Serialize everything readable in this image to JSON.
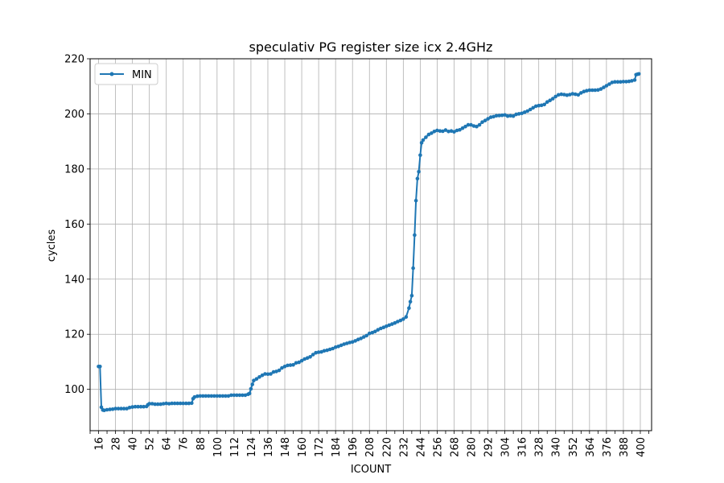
{
  "chart_data": {
    "type": "line",
    "title": "speculativ PG register size icx 2.4GHz",
    "xlabel": "ICOUNT",
    "ylabel": "cycles",
    "xlim": [
      10,
      408
    ],
    "ylim": [
      85,
      220
    ],
    "grid": true,
    "legend_position": "upper-left",
    "x_ticks": [
      16,
      28,
      40,
      52,
      64,
      76,
      88,
      100,
      112,
      124,
      136,
      148,
      160,
      172,
      184,
      196,
      208,
      220,
      232,
      244,
      256,
      268,
      280,
      292,
      304,
      316,
      328,
      340,
      352,
      364,
      376,
      388,
      400
    ],
    "y_ticks": [
      100,
      120,
      140,
      160,
      180,
      200,
      220
    ],
    "series": [
      {
        "name": "MIN",
        "color": "#1f77b4",
        "marker": "circle",
        "points": [
          [
            16,
            108.3
          ],
          [
            17,
            108.3
          ],
          [
            18,
            93.5
          ],
          [
            19,
            92.5
          ],
          [
            20,
            92.4
          ],
          [
            22,
            92.6
          ],
          [
            24,
            92.7
          ],
          [
            26,
            92.8
          ],
          [
            28,
            93.0
          ],
          [
            30,
            93.0
          ],
          [
            32,
            93.0
          ],
          [
            34,
            93.0
          ],
          [
            36,
            93.0
          ],
          [
            38,
            93.4
          ],
          [
            40,
            93.6
          ],
          [
            42,
            93.7
          ],
          [
            44,
            93.7
          ],
          [
            46,
            93.7
          ],
          [
            48,
            93.7
          ],
          [
            50,
            93.8
          ],
          [
            51,
            94.4
          ],
          [
            52,
            94.8
          ],
          [
            54,
            94.8
          ],
          [
            56,
            94.6
          ],
          [
            58,
            94.6
          ],
          [
            60,
            94.6
          ],
          [
            62,
            94.8
          ],
          [
            64,
            94.9
          ],
          [
            66,
            94.8
          ],
          [
            68,
            94.9
          ],
          [
            70,
            94.9
          ],
          [
            72,
            94.9
          ],
          [
            74,
            94.9
          ],
          [
            76,
            94.9
          ],
          [
            78,
            94.9
          ],
          [
            80,
            94.9
          ],
          [
            82,
            95.0
          ],
          [
            83,
            96.6
          ],
          [
            84,
            97.2
          ],
          [
            86,
            97.5
          ],
          [
            88,
            97.6
          ],
          [
            90,
            97.6
          ],
          [
            92,
            97.6
          ],
          [
            94,
            97.6
          ],
          [
            96,
            97.6
          ],
          [
            98,
            97.6
          ],
          [
            100,
            97.6
          ],
          [
            102,
            97.6
          ],
          [
            104,
            97.6
          ],
          [
            106,
            97.6
          ],
          [
            108,
            97.6
          ],
          [
            110,
            97.9
          ],
          [
            112,
            97.9
          ],
          [
            114,
            97.9
          ],
          [
            116,
            97.9
          ],
          [
            118,
            97.9
          ],
          [
            120,
            97.9
          ],
          [
            122,
            98.2
          ],
          [
            123,
            98.5
          ],
          [
            124,
            100.2
          ],
          [
            125,
            101.8
          ],
          [
            126,
            103.2
          ],
          [
            128,
            103.8
          ],
          [
            130,
            104.5
          ],
          [
            132,
            105.1
          ],
          [
            134,
            105.6
          ],
          [
            136,
            105.5
          ],
          [
            138,
            105.6
          ],
          [
            140,
            106.3
          ],
          [
            142,
            106.5
          ],
          [
            144,
            106.9
          ],
          [
            146,
            107.8
          ],
          [
            148,
            108.3
          ],
          [
            150,
            108.7
          ],
          [
            152,
            108.8
          ],
          [
            154,
            108.9
          ],
          [
            156,
            109.6
          ],
          [
            158,
            109.8
          ],
          [
            160,
            110.4
          ],
          [
            162,
            111.0
          ],
          [
            164,
            111.4
          ],
          [
            166,
            111.8
          ],
          [
            168,
            112.6
          ],
          [
            170,
            113.3
          ],
          [
            172,
            113.5
          ],
          [
            174,
            113.6
          ],
          [
            176,
            114.0
          ],
          [
            178,
            114.2
          ],
          [
            180,
            114.5
          ],
          [
            182,
            114.8
          ],
          [
            184,
            115.3
          ],
          [
            186,
            115.6
          ],
          [
            188,
            116.0
          ],
          [
            190,
            116.4
          ],
          [
            192,
            116.7
          ],
          [
            194,
            117.0
          ],
          [
            196,
            117.2
          ],
          [
            198,
            117.6
          ],
          [
            200,
            118.1
          ],
          [
            202,
            118.5
          ],
          [
            204,
            119.0
          ],
          [
            206,
            119.5
          ],
          [
            208,
            120.3
          ],
          [
            210,
            120.6
          ],
          [
            212,
            121.0
          ],
          [
            214,
            121.6
          ],
          [
            216,
            122.1
          ],
          [
            218,
            122.5
          ],
          [
            220,
            122.9
          ],
          [
            222,
            123.3
          ],
          [
            224,
            123.7
          ],
          [
            226,
            124.1
          ],
          [
            228,
            124.6
          ],
          [
            230,
            125.0
          ],
          [
            232,
            125.5
          ],
          [
            234,
            126.3
          ],
          [
            236,
            129.5
          ],
          [
            237,
            131.8
          ],
          [
            238,
            134.0
          ],
          [
            239,
            144.0
          ],
          [
            240,
            156.0
          ],
          [
            241,
            168.5
          ],
          [
            242,
            176.5
          ],
          [
            243,
            179.0
          ],
          [
            244,
            185.0
          ],
          [
            245,
            189.5
          ],
          [
            246,
            190.5
          ],
          [
            248,
            191.5
          ],
          [
            250,
            192.5
          ],
          [
            252,
            193.0
          ],
          [
            254,
            193.6
          ],
          [
            256,
            194.0
          ],
          [
            258,
            193.8
          ],
          [
            260,
            193.7
          ],
          [
            262,
            194.1
          ],
          [
            264,
            193.6
          ],
          [
            266,
            193.8
          ],
          [
            268,
            193.5
          ],
          [
            270,
            194.0
          ],
          [
            272,
            194.2
          ],
          [
            274,
            194.8
          ],
          [
            276,
            195.4
          ],
          [
            278,
            196.0
          ],
          [
            280,
            196.0
          ],
          [
            282,
            195.6
          ],
          [
            284,
            195.4
          ],
          [
            286,
            196.0
          ],
          [
            288,
            197.0
          ],
          [
            290,
            197.6
          ],
          [
            292,
            198.2
          ],
          [
            294,
            198.8
          ],
          [
            296,
            199.0
          ],
          [
            298,
            199.3
          ],
          [
            300,
            199.4
          ],
          [
            302,
            199.5
          ],
          [
            304,
            199.6
          ],
          [
            306,
            199.2
          ],
          [
            308,
            199.3
          ],
          [
            310,
            199.2
          ],
          [
            312,
            199.8
          ],
          [
            314,
            200.0
          ],
          [
            316,
            200.2
          ],
          [
            318,
            200.6
          ],
          [
            320,
            201.0
          ],
          [
            322,
            201.6
          ],
          [
            324,
            202.2
          ],
          [
            326,
            202.8
          ],
          [
            328,
            203.0
          ],
          [
            330,
            203.1
          ],
          [
            332,
            203.4
          ],
          [
            334,
            204.3
          ],
          [
            336,
            204.9
          ],
          [
            338,
            205.5
          ],
          [
            340,
            206.3
          ],
          [
            342,
            206.9
          ],
          [
            344,
            207.1
          ],
          [
            346,
            207.0
          ],
          [
            348,
            206.8
          ],
          [
            350,
            207.0
          ],
          [
            352,
            207.3
          ],
          [
            354,
            207.1
          ],
          [
            356,
            206.9
          ],
          [
            358,
            207.6
          ],
          [
            360,
            208.1
          ],
          [
            362,
            208.4
          ],
          [
            364,
            208.6
          ],
          [
            366,
            208.6
          ],
          [
            368,
            208.6
          ],
          [
            370,
            208.7
          ],
          [
            372,
            209.0
          ],
          [
            374,
            209.6
          ],
          [
            376,
            210.2
          ],
          [
            378,
            210.8
          ],
          [
            380,
            211.4
          ],
          [
            382,
            211.6
          ],
          [
            384,
            211.6
          ],
          [
            386,
            211.6
          ],
          [
            388,
            211.7
          ],
          [
            390,
            211.7
          ],
          [
            392,
            211.8
          ],
          [
            394,
            212.0
          ],
          [
            396,
            212.3
          ],
          [
            397,
            214.2
          ],
          [
            398,
            214.4
          ],
          [
            399,
            214.5
          ]
        ]
      }
    ]
  }
}
